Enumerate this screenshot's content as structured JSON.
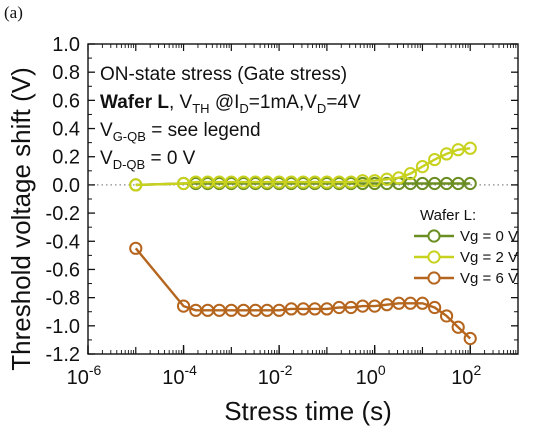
{
  "panel_label": "(a)",
  "chart_data": {
    "type": "line",
    "xlabel": "Stress time (s)",
    "ylabel": "Threshold voltage shift (V)",
    "xscale": "log",
    "xlim": [
      1e-06,
      1000
    ],
    "ylim": [
      -1.2,
      1.0
    ],
    "x_ticks": [
      {
        "value": 1e-06,
        "base": "10",
        "exp": "-6"
      },
      {
        "value": 0.0001,
        "base": "10",
        "exp": "-4"
      },
      {
        "value": 0.01,
        "base": "10",
        "exp": "-2"
      },
      {
        "value": 1,
        "base": "10",
        "exp": "0"
      },
      {
        "value": 100,
        "base": "10",
        "exp": "2"
      }
    ],
    "y_ticks": [
      "1.0",
      "0.8",
      "0.6",
      "0.4",
      "0.2",
      "0.0",
      "-0.2",
      "-0.4",
      "-0.6",
      "-0.8",
      "-1.0",
      "-1.2"
    ],
    "grid": false,
    "reference_line": {
      "y": 0,
      "style": "dotted"
    },
    "annotations": {
      "line1": "ON-state stress (Gate stress)",
      "line2_bold": "Wafer L",
      "line2_a": ", V",
      "line2_a_sub": "TH",
      "line2_b": " @I",
      "line2_b_sub": "D",
      "line2_c": "=1mA,V",
      "line2_c_sub": "D",
      "line2_d": "=4V",
      "line3_a": "V",
      "line3_sub": "G-QB",
      "line3_b": " = see legend",
      "line4_a": "V",
      "line4_sub": "D-QB",
      "line4_b": " = 0 V"
    },
    "legend": {
      "title": "Wafer L:",
      "position": "right",
      "entries": [
        "Vg = 0 V",
        "Vg = 2 V",
        "Vg = 6 V"
      ]
    },
    "x": [
      1e-05,
      0.0001,
      0.00018,
      0.00032,
      0.00056,
      0.001,
      0.0018,
      0.0032,
      0.0056,
      0.01,
      0.018,
      0.032,
      0.056,
      0.1,
      0.18,
      0.32,
      0.56,
      1,
      1.8,
      3.2,
      5.6,
      10,
      18,
      32,
      56,
      100
    ],
    "series": [
      {
        "name": "Vg = 0 V",
        "color": "#6b8e23",
        "values": [
          0.0,
          0.01,
          0.01,
          0.01,
          0.01,
          0.01,
          0.01,
          0.01,
          0.01,
          0.01,
          0.01,
          0.01,
          0.01,
          0.01,
          0.01,
          0.01,
          0.01,
          0.01,
          0.01,
          0.01,
          0.01,
          0.01,
          0.01,
          0.01,
          0.01,
          0.01
        ]
      },
      {
        "name": "Vg = 2 V",
        "color": "#c8d21e",
        "values": [
          0.0,
          0.01,
          0.02,
          0.02,
          0.02,
          0.02,
          0.02,
          0.02,
          0.02,
          0.02,
          0.02,
          0.02,
          0.02,
          0.02,
          0.02,
          0.02,
          0.03,
          0.03,
          0.04,
          0.05,
          0.08,
          0.13,
          0.18,
          0.22,
          0.25,
          0.26
        ]
      },
      {
        "name": "Vg = 6 V",
        "color": "#b5651d",
        "values": [
          -0.45,
          -0.86,
          -0.89,
          -0.89,
          -0.89,
          -0.89,
          -0.89,
          -0.89,
          -0.89,
          -0.89,
          -0.88,
          -0.88,
          -0.88,
          -0.88,
          -0.87,
          -0.87,
          -0.86,
          -0.86,
          -0.85,
          -0.84,
          -0.84,
          -0.84,
          -0.87,
          -0.93,
          -1.01,
          -1.09
        ]
      }
    ]
  }
}
